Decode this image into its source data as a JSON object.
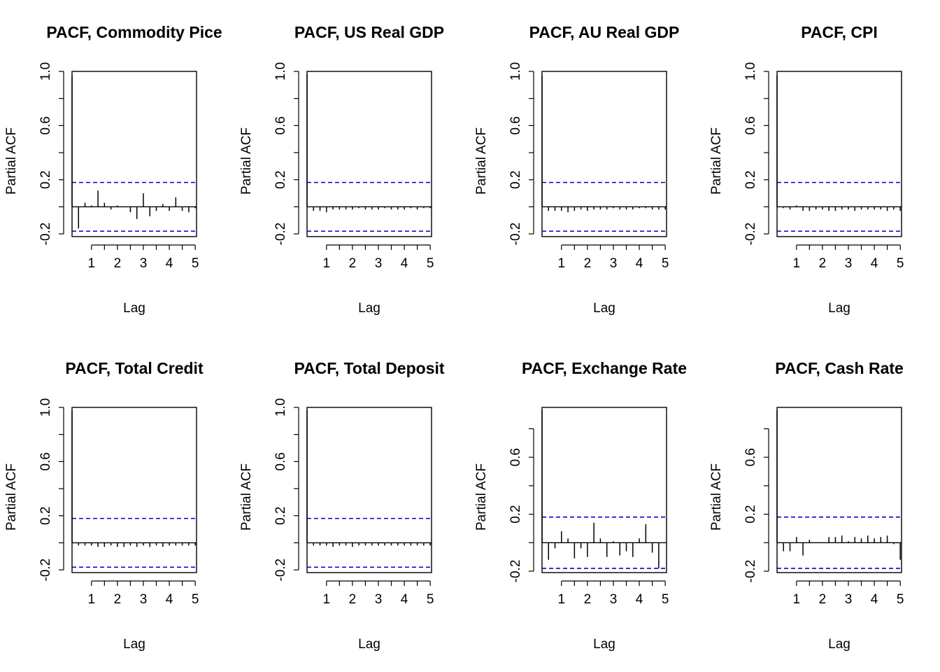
{
  "figure": {
    "description_colors": {
      "bar": "#000000",
      "ci_line": "#0000cd",
      "frame": "#000000"
    }
  },
  "chart_data": [
    {
      "type": "bar",
      "title": "PACF, Commodity Pice",
      "xlabel": "Lag",
      "ylabel": "Partial ACF",
      "xlim": [
        0.25,
        5.05
      ],
      "ylim": [
        -0.22,
        1.0
      ],
      "xticks": [
        1,
        2,
        3,
        4,
        5
      ],
      "xtick_labels": [
        "1",
        "2",
        "3",
        "4",
        "5"
      ],
      "yticks": [
        -0.2,
        0.2,
        0.6,
        1.0
      ],
      "ytick_labels": [
        "-0.2",
        "0.2",
        "0.6",
        "1.0"
      ],
      "ci": 0.18,
      "lags": [
        0.25,
        0.5,
        0.75,
        1.0,
        1.25,
        1.5,
        1.75,
        2.0,
        2.25,
        2.5,
        2.75,
        3.0,
        3.25,
        3.5,
        3.75,
        4.0,
        4.25,
        4.5,
        4.75,
        5.0
      ],
      "values": [
        0.97,
        -0.16,
        0.03,
        0.01,
        0.12,
        0.03,
        -0.02,
        0.01,
        0.0,
        -0.04,
        -0.09,
        0.1,
        -0.07,
        -0.03,
        0.02,
        -0.03,
        0.07,
        -0.03,
        -0.04,
        -0.01
      ]
    },
    {
      "type": "bar",
      "title": "PACF, US Real GDP",
      "xlabel": "Lag",
      "ylabel": "Partial ACF",
      "xlim": [
        0.25,
        5.05
      ],
      "ylim": [
        -0.22,
        1.0
      ],
      "xticks": [
        1,
        2,
        3,
        4,
        5
      ],
      "xtick_labels": [
        "1",
        "2",
        "3",
        "4",
        "5"
      ],
      "yticks": [
        -0.2,
        0.2,
        0.6,
        1.0
      ],
      "ytick_labels": [
        "-0.2",
        "0.2",
        "0.6",
        "1.0"
      ],
      "ci": 0.18,
      "lags": [
        0.25,
        0.5,
        0.75,
        1.0,
        1.25,
        1.5,
        1.75,
        2.0,
        2.25,
        2.5,
        2.75,
        3.0,
        3.25,
        3.5,
        3.75,
        4.0,
        4.25,
        4.5,
        4.75,
        5.0
      ],
      "values": [
        0.98,
        -0.03,
        -0.03,
        -0.04,
        -0.02,
        -0.02,
        -0.02,
        -0.02,
        -0.01,
        -0.02,
        -0.02,
        -0.02,
        -0.01,
        -0.02,
        -0.02,
        -0.02,
        -0.01,
        -0.02,
        -0.01,
        -0.01
      ]
    },
    {
      "type": "bar",
      "title": "PACF, AU Real GDP",
      "xlabel": "Lag",
      "ylabel": "Partial ACF",
      "xlim": [
        0.25,
        5.05
      ],
      "ylim": [
        -0.22,
        1.0
      ],
      "xticks": [
        1,
        2,
        3,
        4,
        5
      ],
      "xtick_labels": [
        "1",
        "2",
        "3",
        "4",
        "5"
      ],
      "yticks": [
        -0.2,
        0.2,
        0.6,
        1.0
      ],
      "ytick_labels": [
        "-0.2",
        "0.2",
        "0.6",
        "1.0"
      ],
      "ci": 0.18,
      "lags": [
        0.25,
        0.5,
        0.75,
        1.0,
        1.25,
        1.5,
        1.75,
        2.0,
        2.25,
        2.5,
        2.75,
        3.0,
        3.25,
        3.5,
        3.75,
        4.0,
        4.25,
        4.5,
        4.75,
        5.0
      ],
      "values": [
        0.97,
        -0.03,
        -0.03,
        -0.03,
        -0.04,
        -0.03,
        -0.02,
        -0.03,
        -0.02,
        -0.02,
        -0.02,
        -0.01,
        -0.02,
        -0.02,
        -0.02,
        -0.01,
        -0.01,
        -0.02,
        -0.02,
        -0.02
      ]
    },
    {
      "type": "bar",
      "title": "PACF, CPI",
      "xlabel": "Lag",
      "ylabel": "Partial ACF",
      "xlim": [
        0.25,
        5.05
      ],
      "ylim": [
        -0.22,
        1.0
      ],
      "xticks": [
        1,
        2,
        3,
        4,
        5
      ],
      "xtick_labels": [
        "1",
        "2",
        "3",
        "4",
        "5"
      ],
      "yticks": [
        -0.2,
        0.2,
        0.6,
        1.0
      ],
      "ytick_labels": [
        "-0.2",
        "0.2",
        "0.6",
        "1.0"
      ],
      "ci": 0.18,
      "lags": [
        0.25,
        0.5,
        0.75,
        1.0,
        1.25,
        1.5,
        1.75,
        2.0,
        2.25,
        2.5,
        2.75,
        3.0,
        3.25,
        3.5,
        3.75,
        4.0,
        4.25,
        4.5,
        4.75,
        5.0
      ],
      "values": [
        0.97,
        -0.01,
        -0.02,
        0.01,
        -0.03,
        -0.03,
        -0.02,
        -0.02,
        -0.03,
        -0.03,
        -0.02,
        -0.02,
        -0.03,
        -0.02,
        -0.02,
        -0.02,
        -0.02,
        -0.03,
        -0.02,
        -0.03
      ]
    },
    {
      "type": "bar",
      "title": "PACF, Total Credit",
      "xlabel": "Lag",
      "ylabel": "Partial ACF",
      "xlim": [
        0.25,
        5.05
      ],
      "ylim": [
        -0.22,
        1.0
      ],
      "xticks": [
        1,
        2,
        3,
        4,
        5
      ],
      "xtick_labels": [
        "1",
        "2",
        "3",
        "4",
        "5"
      ],
      "yticks": [
        -0.2,
        0.2,
        0.6,
        1.0
      ],
      "ytick_labels": [
        "-0.2",
        "0.2",
        "0.6",
        "1.0"
      ],
      "ci": 0.18,
      "lags": [
        0.25,
        0.5,
        0.75,
        1.0,
        1.25,
        1.5,
        1.75,
        2.0,
        2.25,
        2.5,
        2.75,
        3.0,
        3.25,
        3.5,
        3.75,
        4.0,
        4.25,
        4.5,
        4.75,
        5.0
      ],
      "values": [
        0.98,
        -0.02,
        -0.02,
        -0.02,
        -0.03,
        -0.03,
        -0.02,
        -0.03,
        -0.03,
        -0.02,
        -0.03,
        -0.02,
        -0.03,
        -0.02,
        -0.03,
        -0.02,
        -0.02,
        -0.02,
        -0.02,
        -0.02
      ]
    },
    {
      "type": "bar",
      "title": "PACF, Total Deposit",
      "xlabel": "Lag",
      "ylabel": "Partial ACF",
      "xlim": [
        0.25,
        5.05
      ],
      "ylim": [
        -0.22,
        1.0
      ],
      "xticks": [
        1,
        2,
        3,
        4,
        5
      ],
      "xtick_labels": [
        "1",
        "2",
        "3",
        "4",
        "5"
      ],
      "yticks": [
        -0.2,
        0.2,
        0.6,
        1.0
      ],
      "ytick_labels": [
        "-0.2",
        "0.2",
        "0.6",
        "1.0"
      ],
      "ci": 0.18,
      "lags": [
        0.25,
        0.5,
        0.75,
        1.0,
        1.25,
        1.5,
        1.75,
        2.0,
        2.25,
        2.5,
        2.75,
        3.0,
        3.25,
        3.5,
        3.75,
        4.0,
        4.25,
        4.5,
        4.75,
        5.0
      ],
      "values": [
        0.98,
        -0.02,
        -0.02,
        -0.02,
        -0.03,
        -0.02,
        -0.02,
        -0.03,
        -0.02,
        -0.02,
        -0.02,
        -0.02,
        -0.02,
        -0.02,
        -0.02,
        -0.02,
        -0.02,
        -0.02,
        -0.02,
        -0.02
      ]
    },
    {
      "type": "bar",
      "title": "PACF, Exchange Rate",
      "xlabel": "Lag",
      "ylabel": "Partial ACF",
      "xlim": [
        0.25,
        5.05
      ],
      "ylim": [
        -0.21,
        0.95
      ],
      "xticks": [
        1,
        2,
        3,
        4,
        5
      ],
      "xtick_labels": [
        "1",
        "2",
        "3",
        "4",
        "5"
      ],
      "yticks": [
        -0.2,
        0.2,
        0.6
      ],
      "ytick_labels": [
        "-0.2",
        "0.2",
        "0.6"
      ],
      "ci": 0.18,
      "lags": [
        0.25,
        0.5,
        0.75,
        1.0,
        1.25,
        1.5,
        1.75,
        2.0,
        2.25,
        2.5,
        2.75,
        3.0,
        3.25,
        3.5,
        3.75,
        4.0,
        4.25,
        4.5,
        4.75,
        5.0
      ],
      "values": [
        0.93,
        -0.12,
        -0.04,
        0.08,
        0.03,
        -0.11,
        -0.04,
        -0.1,
        0.14,
        0.03,
        -0.1,
        0.01,
        -0.09,
        -0.06,
        -0.1,
        0.03,
        0.13,
        -0.07,
        -0.18,
        0.0
      ]
    },
    {
      "type": "bar",
      "title": "PACF, Cash Rate",
      "xlabel": "Lag",
      "ylabel": "Partial ACF",
      "xlim": [
        0.25,
        5.05
      ],
      "ylim": [
        -0.21,
        0.95
      ],
      "xticks": [
        1,
        2,
        3,
        4,
        5
      ],
      "xtick_labels": [
        "1",
        "2",
        "3",
        "4",
        "5"
      ],
      "yticks": [
        -0.2,
        0.2,
        0.6
      ],
      "ytick_labels": [
        "-0.2",
        "0.2",
        "0.6"
      ],
      "ci": 0.18,
      "lags": [
        0.25,
        0.5,
        0.75,
        1.0,
        1.25,
        1.5,
        1.75,
        2.0,
        2.25,
        2.5,
        2.75,
        3.0,
        3.25,
        3.5,
        3.75,
        4.0,
        4.25,
        4.5,
        4.75,
        5.0
      ],
      "values": [
        0.93,
        -0.06,
        -0.06,
        0.04,
        -0.09,
        0.02,
        0.0,
        0.0,
        0.04,
        0.04,
        0.05,
        0.01,
        0.04,
        0.03,
        0.05,
        0.03,
        0.04,
        0.05,
        -0.01,
        -0.12
      ]
    }
  ]
}
